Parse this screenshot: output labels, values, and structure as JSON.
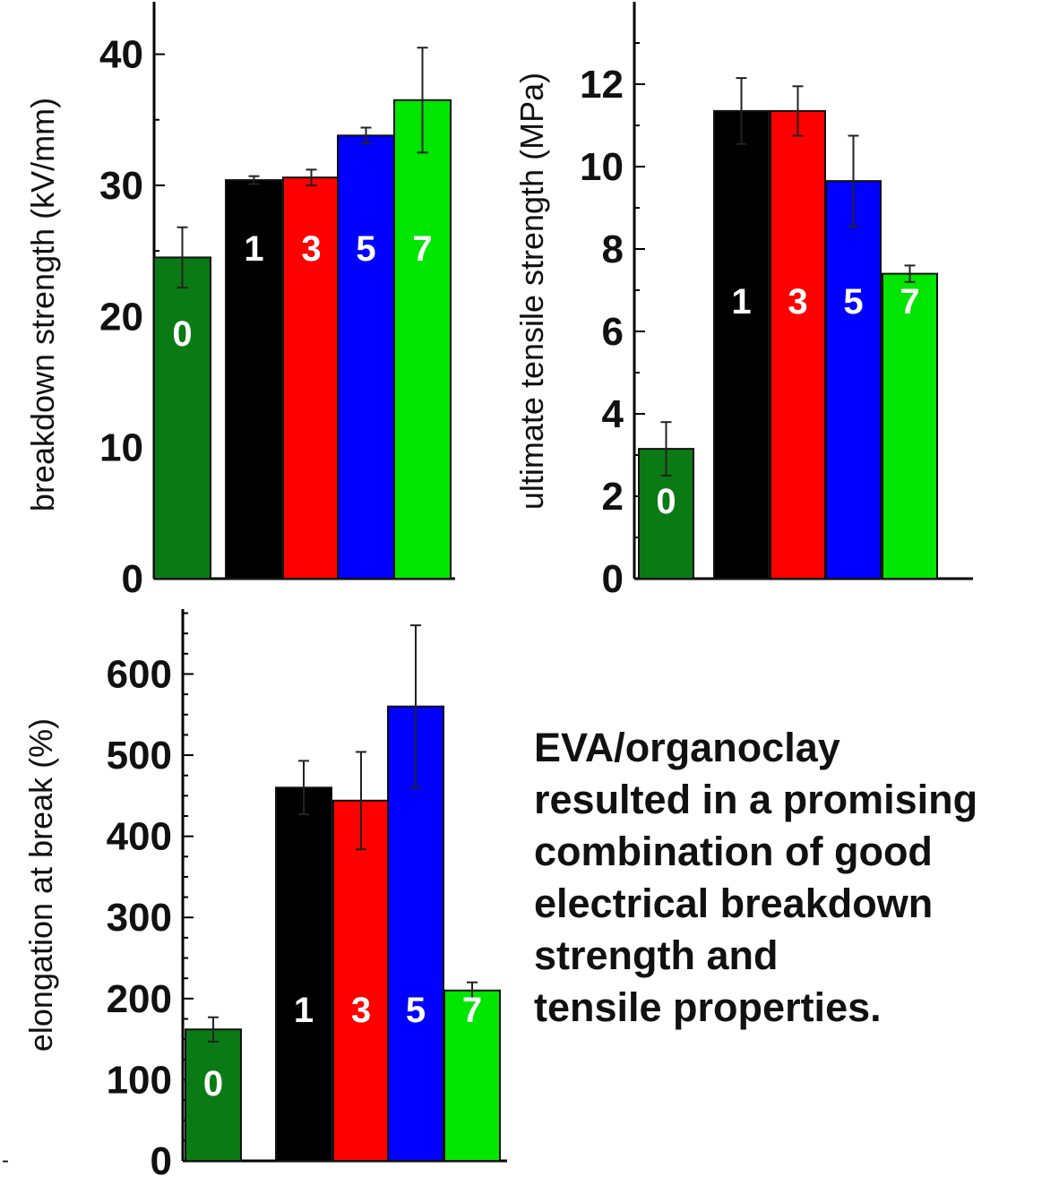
{
  "colors": {
    "dark_green": "#0a7a14",
    "black": "#000000",
    "red": "#ff0000",
    "blue": "#0000ff",
    "bright_green": "#00e600"
  },
  "chart_data": [
    {
      "type": "bar",
      "ylabel": "breakdown strength (kV/mm)",
      "ylim": [
        0,
        44
      ],
      "yticks": [
        0,
        10,
        20,
        30,
        40
      ],
      "categories": [
        "0",
        "1",
        "3",
        "5",
        "7"
      ],
      "values": [
        24.5,
        30.4,
        30.6,
        33.8,
        36.5
      ],
      "errors": [
        2.3,
        0.3,
        0.6,
        0.6,
        4.0
      ],
      "bar_colors": [
        "#0a7a14",
        "#000000",
        "#ff0000",
        "#0000ff",
        "#00e600"
      ],
      "label_colors": [
        "#ffffff",
        "#ffffff",
        "#ffffff",
        "#ffffff",
        "#ffffff"
      ]
    },
    {
      "type": "bar",
      "ylabel": "ultimate tensile strength (MPa)",
      "ylim": [
        0,
        14
      ],
      "yticks": [
        0,
        2,
        4,
        6,
        8,
        10,
        12
      ],
      "categories": [
        "0",
        "1",
        "3",
        "5",
        "7"
      ],
      "values": [
        3.15,
        11.35,
        11.35,
        9.65,
        7.4
      ],
      "errors": [
        0.65,
        0.8,
        0.6,
        1.1,
        0.2
      ],
      "bar_colors": [
        "#0a7a14",
        "#000000",
        "#ff0000",
        "#0000ff",
        "#00e600"
      ],
      "label_colors": [
        "#ffffff",
        "#ffffff",
        "#ffffff",
        "#ffffff",
        "#ffffff"
      ]
    },
    {
      "type": "bar",
      "ylabel": "elongation at break (%)",
      "ylim": [
        0,
        680
      ],
      "yticks": [
        0,
        100,
        200,
        300,
        400,
        500,
        600
      ],
      "categories": [
        "0",
        "1",
        "3",
        "5",
        "7"
      ],
      "values": [
        162,
        460,
        444,
        560,
        210
      ],
      "errors": [
        15,
        33,
        60,
        100,
        10
      ],
      "bar_colors": [
        "#0a7a14",
        "#000000",
        "#ff0000",
        "#0000ff",
        "#00e600"
      ],
      "label_colors": [
        "#ffffff",
        "#ffffff",
        "#ffffff",
        "#ffffff",
        "#ffffff"
      ]
    }
  ],
  "note": {
    "lines": [
      "EVA/organoclay",
      "resulted in a promising",
      "combination of good",
      "electrical breakdown",
      "strength and",
      "tensile properties."
    ]
  },
  "stray_mark": "-"
}
